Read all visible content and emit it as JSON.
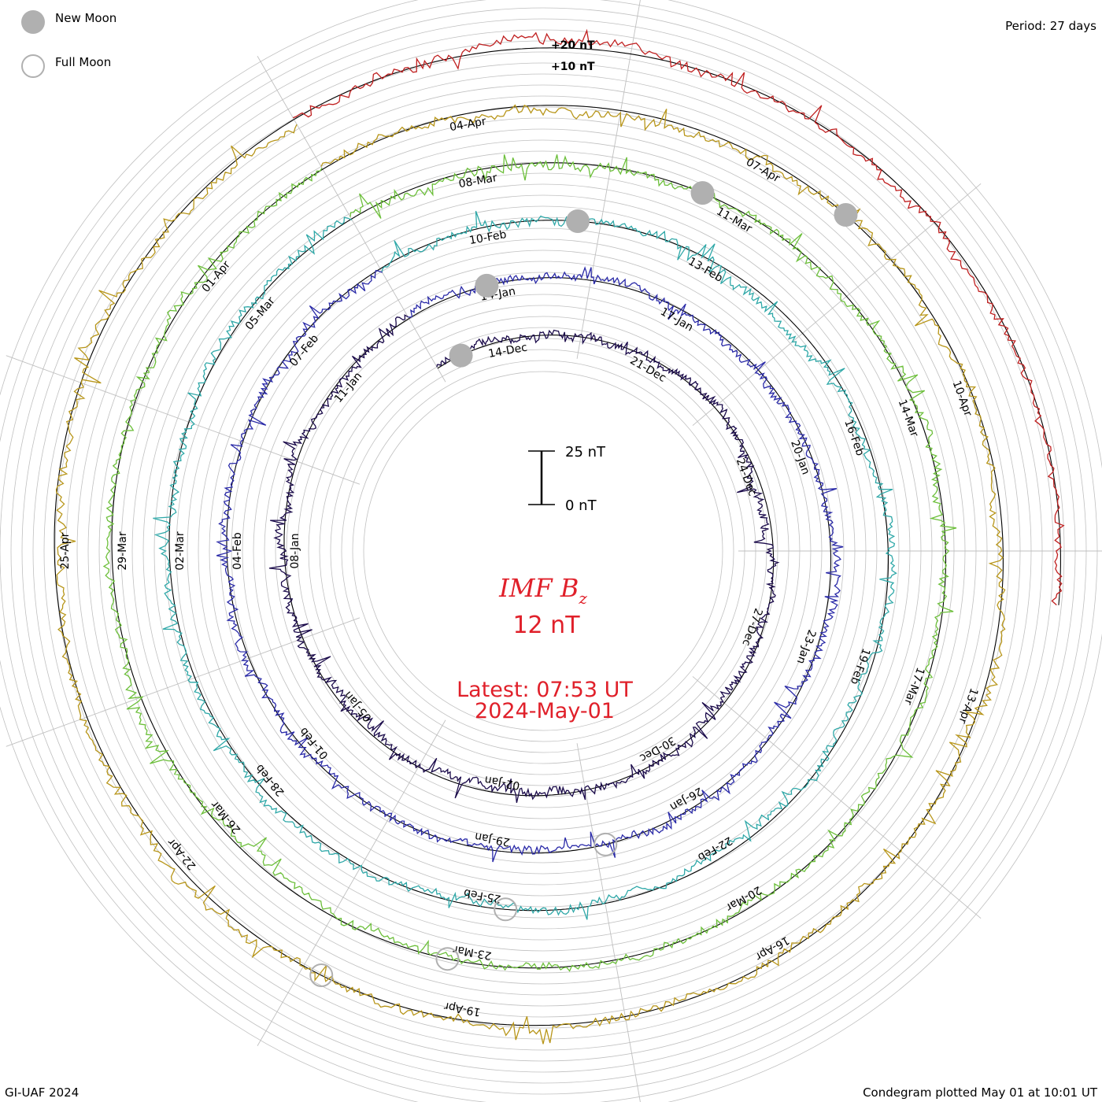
{
  "chart_data": {
    "type": "line",
    "layout": "condegram spiral (27-day rotations)",
    "title": "IMF B",
    "title_subscript": "z",
    "current_value": "12 nT",
    "latest_label": "Latest: 07:53 UT",
    "latest_date": "2024-May-01",
    "period_label": "Period: 27 days",
    "credit": "GI-UAF 2024",
    "plotted_label": "Condegram plotted May 01 at 10:01 UT",
    "legend": {
      "new_moon": "New Moon",
      "full_moon": "Full Moon",
      "position": "top-left"
    },
    "scale_bar": {
      "top_label": "25 nT",
      "bottom_label": "0 nT",
      "top_value": 25,
      "bottom_value": 0
    },
    "ref_ring_labels": [
      "+20 nT",
      "+10 nT"
    ],
    "grid": true,
    "rotations": [
      {
        "color": "#1a0a4a",
        "dates": [
          "14-Dec",
          "21-Dec",
          "24-Dec",
          "27-Dec",
          "30-Dec",
          "02-Jan",
          "05-Jan",
          "08-Jan",
          "11-Jan"
        ]
      },
      {
        "color": "#2a2aa8",
        "dates": [
          "14-Jan",
          "17-Jan",
          "20-Jan",
          "23-Jan",
          "26-Jan",
          "29-Jan",
          "01-Feb",
          "04-Feb",
          "07-Feb"
        ]
      },
      {
        "color": "#2fa8a8",
        "dates": [
          "10-Feb",
          "13-Feb",
          "16-Feb",
          "19-Feb",
          "22-Feb",
          "25-Feb",
          "28-Feb",
          "02-Mar",
          "05-Mar"
        ]
      },
      {
        "color": "#6cbf3a",
        "dates": [
          "08-Mar",
          "11-Mar",
          "14-Mar",
          "17-Mar",
          "20-Mar",
          "23-Mar",
          "26-Mar",
          "29-Mar",
          "01-Apr"
        ]
      },
      {
        "color": "#b8961a",
        "dates": [
          "04-Apr",
          "07-Apr",
          "10-Apr",
          "13-Apr",
          "16-Apr",
          "19-Apr",
          "22-Apr",
          "25-Apr"
        ]
      },
      {
        "color": "#c02020",
        "dates": []
      }
    ],
    "colors": {
      "rotation_1": "#1a0a4a",
      "rotation_2": "#2a2aa8",
      "rotation_3": "#2fa8a8",
      "rotation_4": "#6cbf3a",
      "rotation_5": "#b8961a",
      "rotation_6": "#c02020",
      "annotation_red": "#e0202a",
      "moon_gray": "#b0b0b0",
      "grid_gray": "#c0c0c0"
    }
  }
}
